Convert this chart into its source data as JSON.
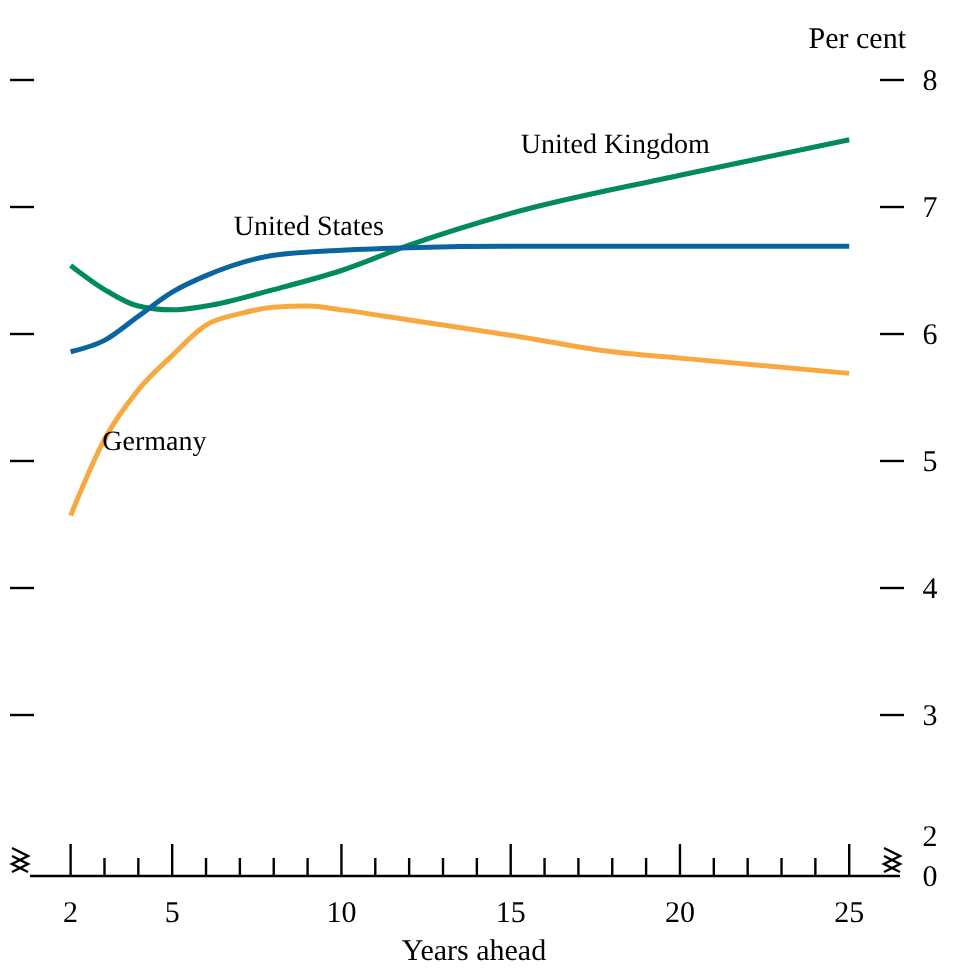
{
  "chart_data": {
    "type": "line",
    "ylabel": "Per cent",
    "xlabel": "Years ahead",
    "xlim": [
      0.8,
      26.5
    ],
    "xticks": [
      2,
      {
        "value": 3,
        "label": null
      },
      {
        "value": 4,
        "label": null
      },
      5,
      {
        "value": 6,
        "label": null
      },
      {
        "value": 7,
        "label": null
      },
      {
        "value": 8,
        "label": null
      },
      {
        "value": 9,
        "label": null
      },
      10,
      {
        "value": 11,
        "label": null
      },
      {
        "value": 12,
        "label": null
      },
      {
        "value": 13,
        "label": null
      },
      {
        "value": 14,
        "label": null
      },
      15,
      {
        "value": 16,
        "label": null
      },
      {
        "value": 17,
        "label": null
      },
      {
        "value": 18,
        "label": null
      },
      {
        "value": 19,
        "label": null
      },
      20,
      {
        "value": 21,
        "label": null
      },
      {
        "value": 22,
        "label": null
      },
      {
        "value": 23,
        "label": null
      },
      {
        "value": 24,
        "label": null
      },
      25
    ],
    "ylim": [
      2,
      8
    ],
    "yticks": [
      2,
      3,
      4,
      5,
      6,
      7,
      8
    ],
    "annotations": [
      "0"
    ],
    "grid": false,
    "marker": "none",
    "line_style": "solid",
    "series": [
      {
        "name": "United Kingdom",
        "color": "#008a5e",
        "x": [
          2,
          3,
          4,
          5,
          6,
          8,
          10,
          12,
          15,
          20,
          25
        ],
        "values": [
          6.54,
          6.35,
          6.22,
          6.19,
          6.22,
          6.35,
          6.5,
          6.7,
          6.95,
          7.25,
          7.53
        ]
      },
      {
        "name": "United States",
        "color": "#0a64a0",
        "x": [
          2,
          3,
          4,
          5,
          6,
          8,
          10,
          12,
          15,
          20,
          25
        ],
        "values": [
          5.86,
          5.95,
          6.14,
          6.33,
          6.46,
          6.62,
          6.66,
          6.68,
          6.69,
          6.69,
          6.69
        ]
      },
      {
        "name": "Germany",
        "color": "#f7a940",
        "x": [
          2,
          3,
          4,
          5,
          6,
          7,
          8,
          9,
          10,
          12,
          15,
          18,
          20,
          25
        ],
        "values": [
          4.57,
          5.17,
          5.56,
          5.83,
          6.07,
          6.16,
          6.21,
          6.22,
          6.19,
          6.11,
          5.99,
          5.86,
          5.81,
          5.69
        ]
      }
    ]
  }
}
